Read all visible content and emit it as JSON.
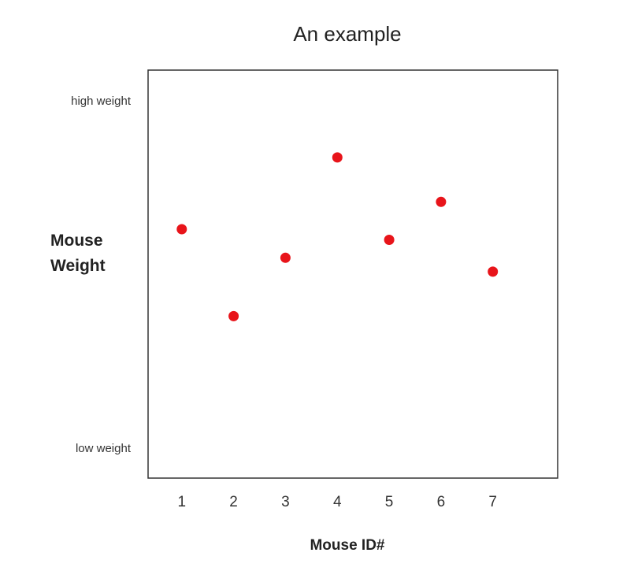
{
  "chart_data": {
    "type": "scatter",
    "title": "An example",
    "xlabel": "Mouse ID#",
    "ylabel_lines": [
      "Mouse",
      "Weight"
    ],
    "y_top_label": "high weight",
    "y_bottom_label": "low weight",
    "x_ticks": [
      "1",
      "2",
      "3",
      "4",
      "5",
      "6",
      "7"
    ],
    "xlim": [
      0.35,
      8.25
    ],
    "ylim": [
      0,
      1
    ],
    "grid": false,
    "point_color": "#e8141a",
    "points": [
      {
        "x": 1,
        "y": 0.61
      },
      {
        "x": 2,
        "y": 0.397
      },
      {
        "x": 3,
        "y": 0.54
      },
      {
        "x": 4,
        "y": 0.786
      },
      {
        "x": 5,
        "y": 0.584
      },
      {
        "x": 6,
        "y": 0.677
      },
      {
        "x": 7,
        "y": 0.506
      }
    ]
  }
}
